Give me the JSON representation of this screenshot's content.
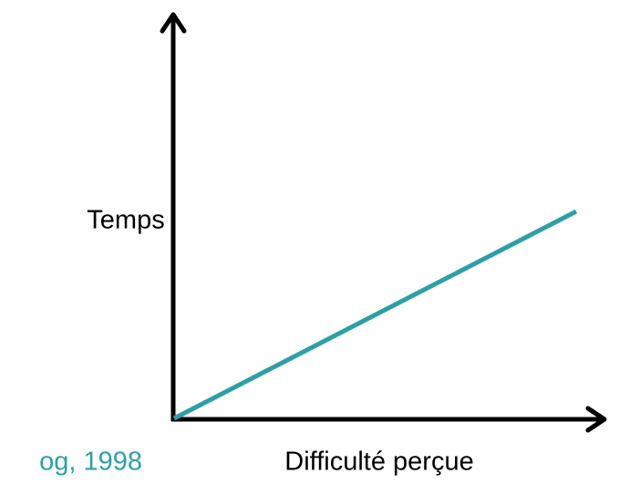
{
  "axes": {
    "y_label": "Temps",
    "x_label": "Difficulté perçue"
  },
  "citation": "og, 1998"
}
